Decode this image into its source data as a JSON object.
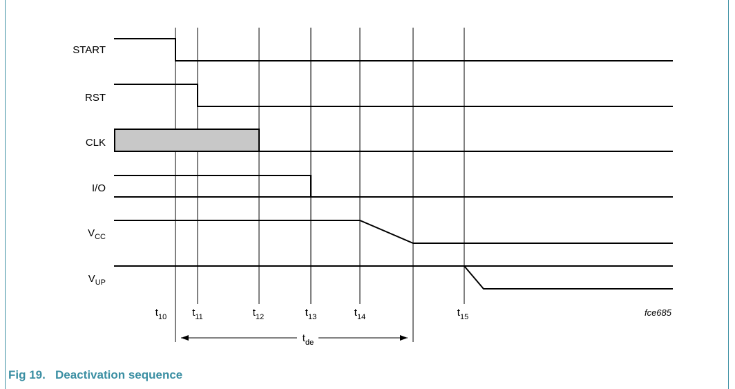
{
  "figure": {
    "caption": "Fig 19.   Deactivation sequence",
    "code": "fce685",
    "accent_color": "#3b8fa3",
    "clk_fill_color": "#c8c8c8"
  },
  "signals": [
    {
      "main": "START",
      "sub": ""
    },
    {
      "main": "RST",
      "sub": ""
    },
    {
      "main": "CLK",
      "sub": ""
    },
    {
      "main": "I/O",
      "sub": ""
    },
    {
      "main": "V",
      "sub": "CC"
    },
    {
      "main": "V",
      "sub": "UP"
    }
  ],
  "time_markers": [
    {
      "main": "t",
      "sub": "10"
    },
    {
      "main": "t",
      "sub": "11"
    },
    {
      "main": "t",
      "sub": "12"
    },
    {
      "main": "t",
      "sub": "13"
    },
    {
      "main": "t",
      "sub": "14"
    },
    {
      "main": "t",
      "sub": "15"
    }
  ],
  "duration": {
    "main": "t",
    "sub": "de"
  }
}
